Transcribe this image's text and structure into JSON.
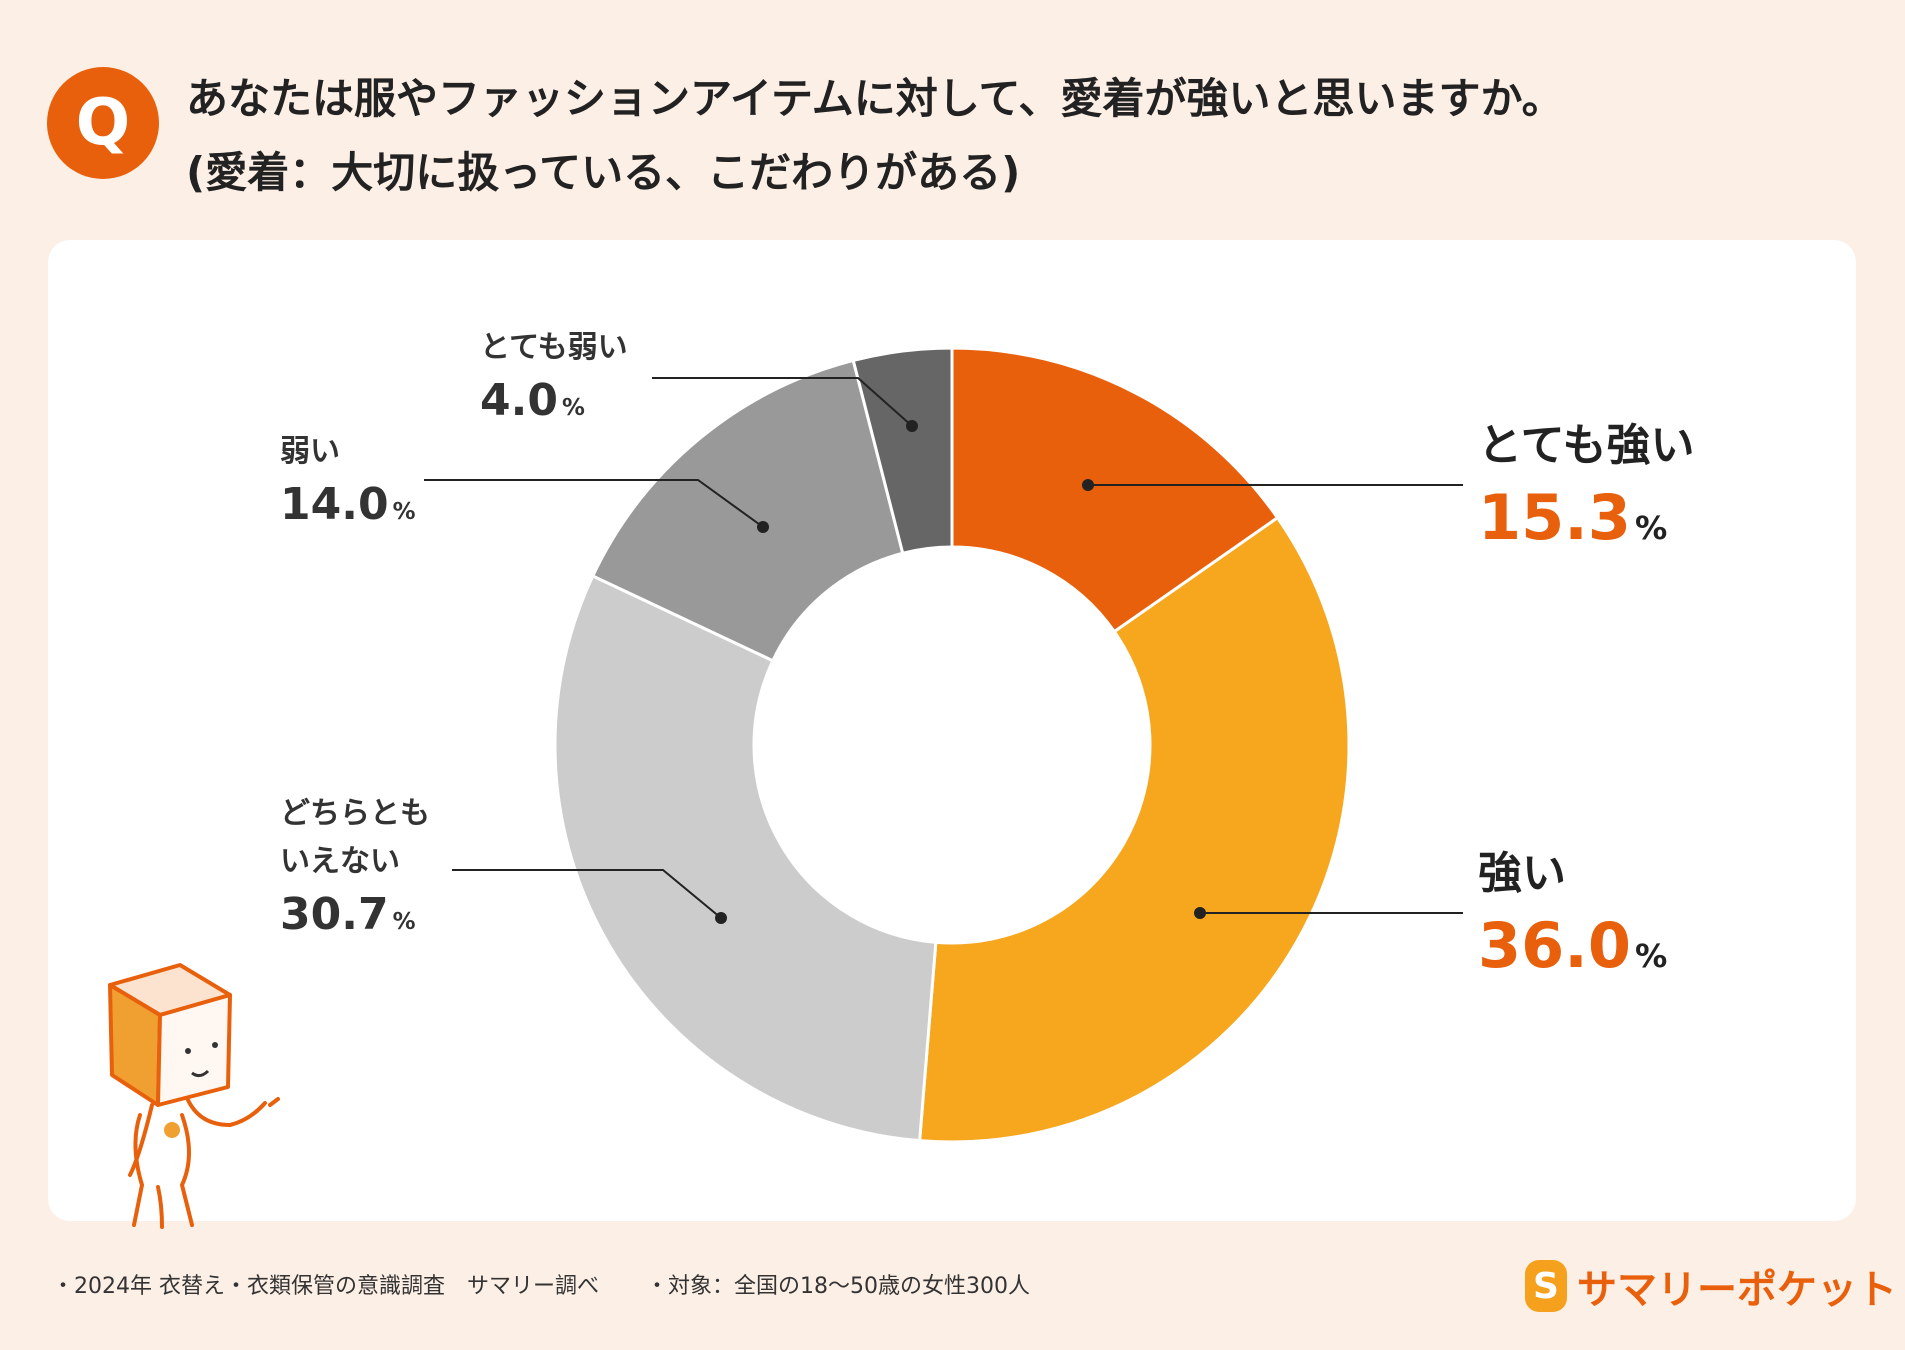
{
  "header": {
    "badge": "Q",
    "question_line1": "あなたは服やファッションアイテムに対して、愛着が強いと思いますか。",
    "question_line2": "(愛着：大切に扱っている、こだわりがある)"
  },
  "chart_data": {
    "type": "donut",
    "title": "あなたは服やファッションアイテムに対して、愛着が強いと思いますか。",
    "unit": "%",
    "slices": [
      {
        "label": "とても強い",
        "value": 15.3,
        "display": "15.3",
        "color": "#e8600c"
      },
      {
        "label": "強い",
        "value": 36.0,
        "display": "36.0",
        "color": "#f6a71e"
      },
      {
        "label": "どちらともいえない",
        "label_line1": "どちらとも",
        "label_line2": "いえない",
        "value": 30.7,
        "display": "30.7",
        "color": "#cccccc"
      },
      {
        "label": "弱い",
        "value": 14.0,
        "display": "14.0",
        "color": "#999999"
      },
      {
        "label": "とても弱い",
        "value": 4.0,
        "display": "4.0",
        "color": "#666666"
      }
    ]
  },
  "footer": {
    "source": "・2024年 衣替え・衣類保管の意識調査　サマリー調べ",
    "target": "・対象：全国の18〜50歳の女性300人"
  },
  "logo": {
    "mark": "S",
    "text": "サマリーポケット"
  }
}
